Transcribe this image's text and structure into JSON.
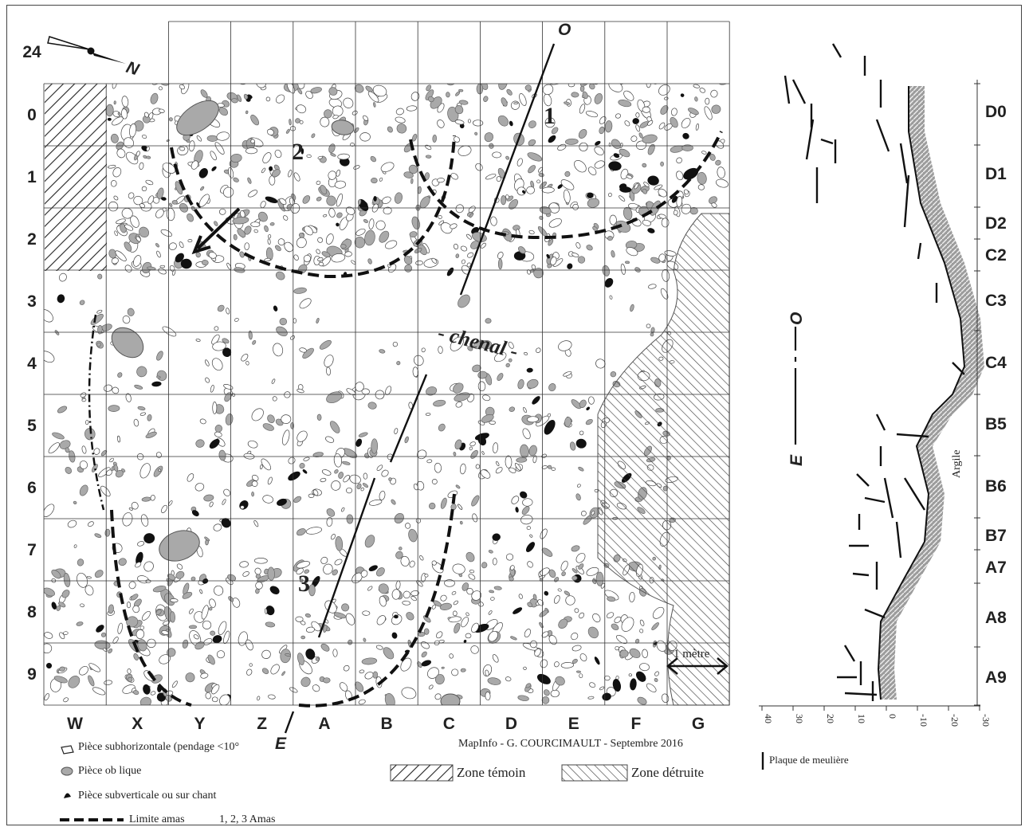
{
  "grid": {
    "columns": [
      "W",
      "X",
      "Y",
      "Z",
      "A",
      "B",
      "C",
      "D",
      "E",
      "F",
      "G"
    ],
    "rows": [
      "24",
      "0",
      "1",
      "2",
      "3",
      "4",
      "5",
      "6",
      "7",
      "8",
      "9"
    ]
  },
  "north_label": "N",
  "section_endpoints": {
    "o_top": "O",
    "e_bottom": "E"
  },
  "clusters": [
    "1",
    "2",
    "3"
  ],
  "chenal_label": "- chenal -",
  "scale_label": "1 mètre",
  "credit": "MapInfo - G. COURCIMAULT - Septembre 2016",
  "profile": {
    "layers": [
      "D0",
      "D1",
      "D2",
      "C2",
      "C3",
      "C4",
      "B5",
      "B6",
      "B7",
      "A7",
      "A8",
      "A9"
    ],
    "axis_ticks": [
      "40",
      "30",
      "20",
      "10",
      "0",
      "-10",
      "-20",
      "-30"
    ],
    "orientation_e": "E",
    "orientation_o": "O",
    "argile_label": "Argile",
    "legend_meuliere": "Plaque de meulière"
  },
  "legend": {
    "subhorizontal": "Pièce subhorizontale (pendage <10°",
    "oblique": "Pièce ob lique",
    "subverticale": "Pièce subverticale ou sur chant",
    "limite": "Limite amas",
    "amas": "1, 2, 3   Amas",
    "zone_temoin": "Zone témoin",
    "zone_detruite": "Zone détruite"
  },
  "colors": {
    "grey_fill": "#a9a9a9",
    "black_fill": "#111111",
    "line": "#222222"
  }
}
